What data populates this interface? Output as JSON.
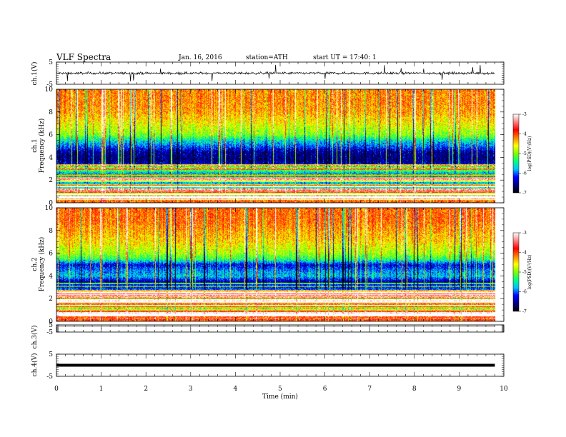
{
  "header": {
    "title": "VLF  Spectra",
    "date": "Jan. 16, 2016",
    "station": "station=ATH",
    "start": "start  UT =    17:40: 1"
  },
  "colors": {
    "colormap": [
      "#000000",
      "#000080",
      "#0000ff",
      "#00bfff",
      "#00ff80",
      "#80ff00",
      "#ffff00",
      "#ff8000",
      "#ff0000",
      "#ff8080",
      "#ffffff"
    ],
    "trace": "#000000",
    "ch3_trace": "#808080"
  },
  "chart_data": {
    "type": "heatmap",
    "xlabel": "Time  (min)",
    "xlim": [
      0,
      10
    ],
    "xticks": [
      "0",
      "1",
      "2",
      "3",
      "4",
      "5",
      "6",
      "7",
      "8",
      "9",
      "10"
    ],
    "panels": [
      {
        "id": "ch1-wave",
        "ylabel": "ch.1(V)",
        "ylim": [
          -5,
          5
        ],
        "yticks": [
          "5",
          "-5"
        ],
        "trace": {
          "level": 0,
          "noise": 0.5
        }
      },
      {
        "id": "ch1-spec",
        "ylabel_lines": [
          "ch.1",
          "Frequency  (kHz)"
        ],
        "ylim": [
          0,
          10
        ],
        "yticks": [
          "0",
          "2",
          "4",
          "6",
          "8",
          "10"
        ],
        "colorbar": {
          "label": "log(PSD)(V²/Hz)",
          "range": [
            -7,
            -3
          ],
          "ticks": [
            "-3",
            "-4",
            "-5",
            "-6",
            "-7"
          ]
        },
        "profile": [
          [
            0.0,
            -4.0
          ],
          [
            0.3,
            -4.2
          ],
          [
            0.6,
            -4.7
          ],
          [
            1.0,
            -5.0
          ],
          [
            1.5,
            -5.6
          ],
          [
            2.0,
            -5.8
          ],
          [
            2.5,
            -6.2
          ],
          [
            2.8,
            -5.5
          ],
          [
            3.0,
            -5.9
          ],
          [
            3.3,
            -6.3
          ],
          [
            3.8,
            -6.6
          ],
          [
            4.5,
            -6.5
          ],
          [
            5.0,
            -6.0
          ],
          [
            5.5,
            -5.6
          ],
          [
            6.0,
            -5.0
          ],
          [
            7.0,
            -4.6
          ],
          [
            8.0,
            -4.3
          ],
          [
            9.0,
            -4.2
          ],
          [
            10.0,
            -4.2
          ]
        ],
        "quiet_interval_min": [
          1.2,
          7.4
        ]
      },
      {
        "id": "ch2-spec",
        "ylabel_lines": [
          "ch.2",
          "Frequency  (kHz)"
        ],
        "ylim": [
          0,
          10
        ],
        "yticks": [
          "0",
          "2",
          "4",
          "6",
          "8",
          "10"
        ],
        "colorbar": {
          "label": "log(PSD)(V²/Hz)",
          "range": [
            -7,
            -3
          ],
          "ticks": [
            "-3",
            "-4",
            "-5",
            "-6",
            "-7"
          ]
        },
        "profile": [
          [
            0.0,
            -4.0
          ],
          [
            0.4,
            -4.0
          ],
          [
            0.8,
            -4.5
          ],
          [
            1.2,
            -5.0
          ],
          [
            1.6,
            -4.4
          ],
          [
            2.0,
            -5.3
          ],
          [
            2.5,
            -5.6
          ],
          [
            3.0,
            -6.2
          ],
          [
            3.5,
            -6.5
          ],
          [
            4.0,
            -5.7
          ],
          [
            4.5,
            -5.9
          ],
          [
            5.0,
            -6.3
          ],
          [
            5.5,
            -5.3
          ],
          [
            6.0,
            -4.9
          ],
          [
            7.0,
            -4.5
          ],
          [
            8.0,
            -4.3
          ],
          [
            9.0,
            -4.1
          ],
          [
            10.0,
            -4.1
          ]
        ],
        "quiet_interval_min": [
          0,
          10
        ]
      },
      {
        "id": "ch3-wave",
        "ylabel": "ch.3(V)",
        "ylim": [
          -5,
          5
        ],
        "yticks": [
          "5",
          "-5"
        ],
        "trace": {
          "level": 3.2,
          "noise": 0
        }
      },
      {
        "id": "ch4-wave",
        "ylabel": "ch.4(V)",
        "ylim": [
          -5,
          5
        ],
        "yticks": [
          "5",
          "-5"
        ],
        "trace": {
          "level": 0,
          "noise": 0.15
        }
      }
    ],
    "data_end_min": 9.8
  }
}
